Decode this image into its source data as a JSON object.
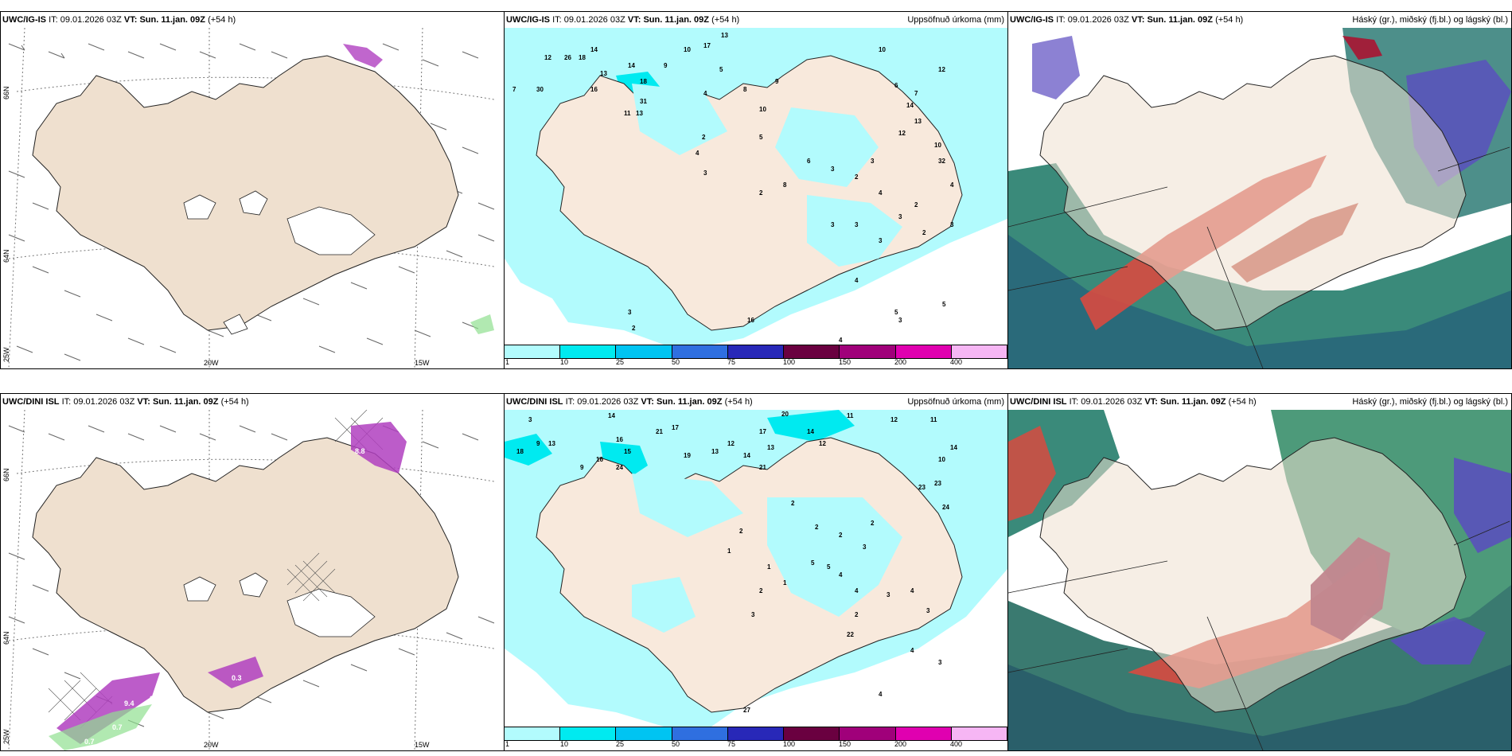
{
  "rows": [
    {
      "model_label": "UWC/IG-IS",
      "it_label": "IT:",
      "it_value": "09.01.2026 03Z",
      "vt_label": "VT:",
      "vt_value": "Sun. 11.jan. 09Z",
      "lead": "(+54 h)"
    },
    {
      "model_label": "UWC/DINI ISL",
      "it_label": "IT:",
      "it_value": "09.01.2026 03Z",
      "vt_label": "VT:",
      "vt_value": "Sun. 11.jan. 09Z",
      "lead": "(+54 h)"
    }
  ],
  "panel_titles": {
    "precip": "Uppsöfnuð úrkoma (mm)",
    "clouds": "Háský (gr.), miðský (fj.bl.) og lágský (bl.)"
  },
  "axis_labels": {
    "lat_66": "66N",
    "lat_64": "64N",
    "lon_25": "25W",
    "lon_20": "20W",
    "lon_15": "15W"
  },
  "colorbar": {
    "ticks": [
      "1",
      "10",
      "25",
      "50",
      "75",
      "100",
      "150",
      "200",
      "400"
    ],
    "colors": [
      "#b2fbfd",
      "#00eaf0",
      "#00c4f2",
      "#2f6fe0",
      "#2828b8",
      "#6a0040",
      "#a0007a",
      "#e000b0",
      "#f6b6f4"
    ]
  },
  "precip_values_ig": [
    "12",
    "26",
    "18",
    "14",
    "13",
    "16",
    "30",
    "7",
    "9",
    "10",
    "17",
    "13",
    "14",
    "18",
    "11",
    "13",
    "31",
    "4",
    "5",
    "8",
    "10",
    "9",
    "10",
    "6",
    "7",
    "12",
    "12",
    "14",
    "13",
    "10",
    "32",
    "2",
    "4",
    "3",
    "5",
    "8",
    "6",
    "3",
    "2",
    "3",
    "4",
    "2",
    "3",
    "2",
    "3",
    "4",
    "2",
    "3",
    "3",
    "3",
    "4",
    "5",
    "16",
    "3",
    "2",
    "3",
    "5",
    "4"
  ],
  "precip_values_dini": [
    "3",
    "9",
    "18",
    "13",
    "14",
    "21",
    "17",
    "20",
    "14",
    "12",
    "19",
    "11",
    "16",
    "15",
    "16",
    "9",
    "24",
    "12",
    "13",
    "14",
    "17",
    "13",
    "21",
    "12",
    "11",
    "14",
    "23",
    "23",
    "24",
    "10",
    "2",
    "1",
    "1",
    "2",
    "2",
    "2",
    "3",
    "2",
    "1",
    "2",
    "3",
    "4",
    "5",
    "5",
    "4",
    "3",
    "2",
    "4",
    "3",
    "22",
    "27",
    "4",
    "3",
    "4"
  ],
  "wind_values_dini": [
    "9.4",
    "0.5",
    "0.5",
    "0.7",
    "0.7",
    "8.8",
    "0.3"
  ]
}
